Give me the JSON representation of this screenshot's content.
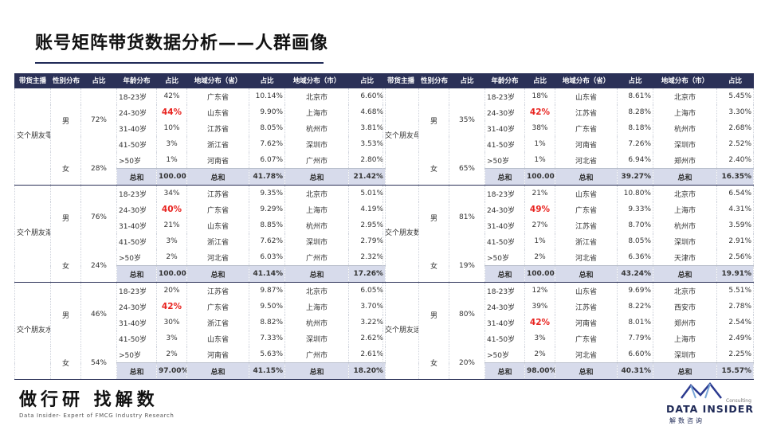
{
  "title": "账号矩阵带货数据分析——人群画像",
  "colors": {
    "header_bg": "#2b3157",
    "total_bg": "#d7dbeb",
    "highlight": "#e8231f",
    "accent": "#1f2a57"
  },
  "headers": [
    "带货主播",
    "性别分布",
    "占比",
    "年龄分布",
    "占比",
    "地域分布（省）",
    "占比",
    "地域分布（市）",
    "占比"
  ],
  "left_table": [
    {
      "anchor": "交个朋友零食和方便食品",
      "male": {
        "label": "男",
        "pct": "72%"
      },
      "female": {
        "label": "女",
        "pct": "28%"
      },
      "rows": [
        [
          "18-23岁",
          "42%",
          "广东省",
          "10.14%",
          "北京市",
          "6.60%"
        ],
        [
          "24-30岁",
          "44%",
          "山东省",
          "9.90%",
          "上海市",
          "4.68%"
        ],
        [
          "31-40岁",
          "10%",
          "江苏省",
          "8.05%",
          "杭州市",
          "3.81%"
        ],
        [
          "41-50岁",
          "3%",
          "浙江省",
          "7.62%",
          "深圳市",
          "3.53%"
        ],
        [
          ">50岁",
          "1%",
          "河南省",
          "6.07%",
          "广州市",
          "2.80%"
        ],
        [
          "总和",
          "100.00%",
          "总和",
          "41.78%",
          "总和",
          "21.42%"
        ]
      ]
    },
    {
      "anchor": "交个朋友潮流女装",
      "male": {
        "label": "男",
        "pct": "76%"
      },
      "female": {
        "label": "女",
        "pct": "24%"
      },
      "rows": [
        [
          "18-23岁",
          "34%",
          "江苏省",
          "9.35%",
          "北京市",
          "5.01%"
        ],
        [
          "24-30岁",
          "40%",
          "广东省",
          "9.29%",
          "上海市",
          "4.19%"
        ],
        [
          "31-40岁",
          "21%",
          "山东省",
          "8.85%",
          "杭州市",
          "2.95%"
        ],
        [
          "41-50岁",
          "3%",
          "浙江省",
          "7.62%",
          "深圳市",
          "2.79%"
        ],
        [
          ">50岁",
          "2%",
          "河北省",
          "6.03%",
          "广州市",
          "2.32%"
        ],
        [
          "总和",
          "100.00%",
          "总和",
          "41.14%",
          "总和",
          "17.26%"
        ]
      ]
    },
    {
      "anchor": "交个朋友水果和营养膳食",
      "male": {
        "label": "男",
        "pct": "46%"
      },
      "female": {
        "label": "女",
        "pct": "54%"
      },
      "rows": [
        [
          "18-23岁",
          "20%",
          "江苏省",
          "9.87%",
          "北京市",
          "6.05%"
        ],
        [
          "24-30岁",
          "42%",
          "广东省",
          "9.50%",
          "上海市",
          "3.70%"
        ],
        [
          "31-40岁",
          "30%",
          "浙江省",
          "8.82%",
          "杭州市",
          "3.22%"
        ],
        [
          "41-50岁",
          "3%",
          "山东省",
          "7.33%",
          "深圳市",
          "2.62%"
        ],
        [
          ">50岁",
          "2%",
          "河南省",
          "5.63%",
          "广州市",
          "2.61%"
        ],
        [
          "总和",
          "97.00%",
          "总和",
          "41.15%",
          "总和",
          "18.20%"
        ]
      ]
    }
  ],
  "right_table": [
    {
      "anchor": "交个朋友母婴生活",
      "male": {
        "label": "男",
        "pct": "35%"
      },
      "female": {
        "label": "女",
        "pct": "65%"
      },
      "rows": [
        [
          "18-23岁",
          "18%",
          "山东省",
          "8.61%",
          "北京市",
          "5.45%"
        ],
        [
          "24-30岁",
          "42%",
          "江苏省",
          "8.28%",
          "上海市",
          "3.30%"
        ],
        [
          "31-40岁",
          "38%",
          "广东省",
          "8.18%",
          "杭州市",
          "2.68%"
        ],
        [
          "41-50岁",
          "1%",
          "河南省",
          "7.26%",
          "深圳市",
          "2.52%"
        ],
        [
          ">50岁",
          "1%",
          "河北省",
          "6.94%",
          "郑州市",
          "2.40%"
        ],
        [
          "总和",
          "100.00%",
          "总和",
          "39.27%",
          "总和",
          "16.35%"
        ]
      ]
    },
    {
      "anchor": "交个朋友数码电器",
      "male": {
        "label": "男",
        "pct": "81%"
      },
      "female": {
        "label": "女",
        "pct": "19%"
      },
      "rows": [
        [
          "18-23岁",
          "21%",
          "山东省",
          "10.80%",
          "北京市",
          "6.54%"
        ],
        [
          "24-30岁",
          "49%",
          "广东省",
          "9.33%",
          "上海市",
          "4.31%"
        ],
        [
          "31-40岁",
          "27%",
          "江苏省",
          "8.70%",
          "杭州市",
          "3.59%"
        ],
        [
          "41-50岁",
          "1%",
          "浙江省",
          "8.05%",
          "深圳市",
          "2.91%"
        ],
        [
          ">50岁",
          "2%",
          "河北省",
          "6.36%",
          "天津市",
          "2.56%"
        ],
        [
          "总和",
          "100.00%",
          "总和",
          "43.24%",
          "总和",
          "19.91%"
        ]
      ]
    },
    {
      "anchor": "交个朋友运动商务男装",
      "male": {
        "label": "男",
        "pct": "80%"
      },
      "female": {
        "label": "女",
        "pct": "20%"
      },
      "rows": [
        [
          "18-23岁",
          "12%",
          "山东省",
          "9.69%",
          "北京市",
          "5.51%"
        ],
        [
          "24-30岁",
          "39%",
          "江苏省",
          "8.22%",
          "西安市",
          "2.78%"
        ],
        [
          "31-40岁",
          "42%",
          "河南省",
          "8.01%",
          "郑州市",
          "2.54%"
        ],
        [
          "41-50岁",
          "3%",
          "广东省",
          "7.79%",
          "上海市",
          "2.49%"
        ],
        [
          ">50岁",
          "2%",
          "河北省",
          "6.60%",
          "深圳市",
          "2.25%"
        ],
        [
          "总和",
          "98.00%",
          "总和",
          "40.31%",
          "总和",
          "15.57%"
        ]
      ]
    }
  ],
  "highlights": {
    "left": [
      1,
      1,
      1
    ],
    "right": [
      1,
      1,
      2
    ]
  },
  "footer": {
    "logo_text": "做行研 找解数",
    "tagline": "Data Insider- Expert of FMCG Industry Research",
    "brand_consulting": "Consulting",
    "brand_name": "DATA INSIDER",
    "brand_cn": "解数咨询"
  }
}
